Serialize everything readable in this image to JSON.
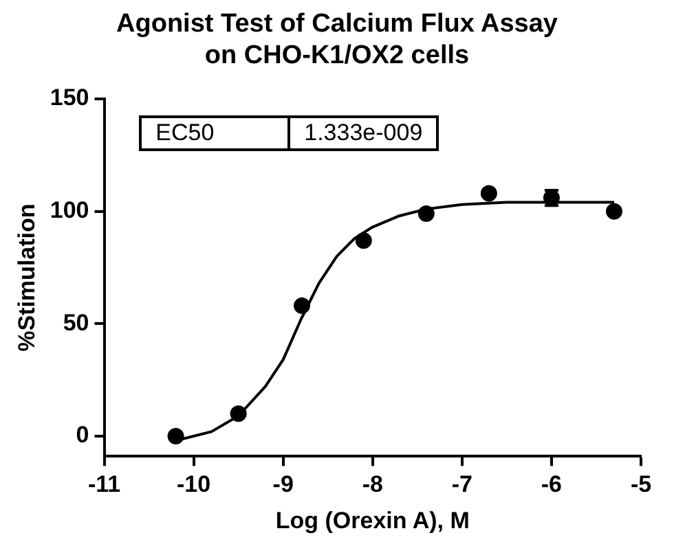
{
  "chart_data": {
    "type": "scatter",
    "title": "Agonist Test of Calcium Flux Assay\non CHO-K1/OX2 cells",
    "xlabel": "Log (Orexin A), M",
    "ylabel": "%Stimulation",
    "x": [
      -10.2,
      -9.5,
      -8.79,
      -8.1,
      -7.4,
      -6.7,
      -6.0,
      -5.3
    ],
    "series": [
      {
        "color": "#000000",
        "values": [
          0,
          10,
          58,
          87,
          99,
          108,
          106,
          100
        ],
        "errors": [
          null,
          null,
          null,
          null,
          null,
          null,
          3.4,
          null
        ],
        "marker": "circle"
      },
      {
        "type": "line",
        "color": "#000000",
        "x": [
          -10.2,
          -9.8,
          -9.5,
          -9.2,
          -9.0,
          -8.8,
          -8.6,
          -8.4,
          -8.2,
          -8.0,
          -7.7,
          -7.4,
          -7.0,
          -6.5,
          -6.0,
          -5.3
        ],
        "values": [
          -2,
          2,
          9,
          22,
          34,
          52,
          68,
          80,
          88,
          93,
          98,
          101,
          103,
          104,
          104,
          104
        ],
        "marker": "none"
      }
    ],
    "annotations": [
      "EC50",
      "1.333e-009"
    ],
    "xlim": [
      -11,
      -5
    ],
    "xticks": [
      -11,
      -10,
      -9,
      -8,
      -7,
      -6,
      -5
    ],
    "ylim": [
      -9,
      150
    ],
    "yticks": [
      0,
      50,
      100,
      150
    ],
    "grid": false,
    "legend": false
  }
}
